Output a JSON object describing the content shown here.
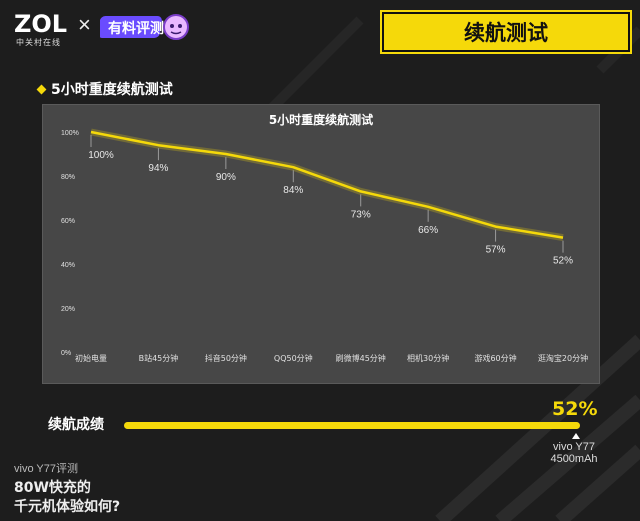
{
  "header": {
    "logo_text": "ZOL",
    "logo_sub": "中关村在线",
    "cross": "×",
    "badge_text": "有料评测",
    "title": "续航测试"
  },
  "section": {
    "title": "5小时重度续航测试"
  },
  "chart_data": {
    "type": "line",
    "title": "5小时重度续航测试",
    "categories": [
      "初始电量",
      "B站45分钟",
      "抖音50分钟",
      "QQ50分钟",
      "刷微博45分钟",
      "相机30分钟",
      "游戏60分钟",
      "逛淘宝20分钟"
    ],
    "series": [
      {
        "values": [
          100,
          94,
          90,
          84,
          73,
          66,
          57,
          52
        ]
      }
    ],
    "value_labels": [
      "100%",
      "94%",
      "90%",
      "84%",
      "73%",
      "66%",
      "57%",
      "52%"
    ],
    "y_ticks": [
      "0%",
      "20%",
      "40%",
      "60%",
      "80%",
      "100%"
    ],
    "ylim": [
      0,
      100
    ],
    "line_color": "#f5d90a",
    "grid": false
  },
  "score": {
    "label": "续航成绩",
    "value": "52%",
    "fraction": 1,
    "device_line1": "vivo Y77",
    "device_line2": "4500mAh"
  },
  "footer": {
    "line1": "vivo Y77评测",
    "line2": "80W快充的",
    "line3": "千元机体验如何?"
  },
  "colors": {
    "accent": "#f5d90a",
    "background": "#1d1d1d",
    "panel": "#474747"
  }
}
